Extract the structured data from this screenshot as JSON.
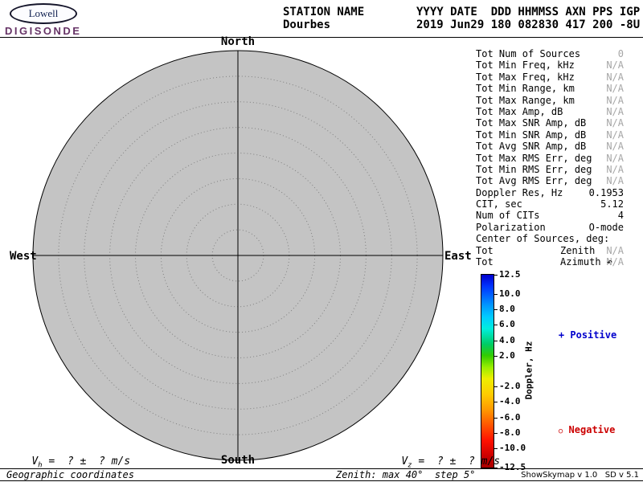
{
  "colors": {
    "brand_purple": "#663366",
    "positive_blue": "#0000cc",
    "negative_red": "#cc0000",
    "map_fill": "#c4c4c4"
  },
  "logo": {
    "name": "Lowell",
    "product": "DIGISONDE"
  },
  "header": {
    "station_label": "STATION NAME",
    "station_name": "Dourbes",
    "fields_header": "YYYY DATE  DDD HHMMSS AXN PPS IGP",
    "fields_values": "2019 Jun29 180 082830 417 200 -8U"
  },
  "skymap": {
    "north": "North",
    "south": "South",
    "west": "West",
    "east": "East"
  },
  "stats": [
    {
      "label": "Tot Num of Sources",
      "value": "0",
      "dim": true
    },
    {
      "label": "Tot Min Freq, kHz",
      "value": "N/A",
      "dim": true
    },
    {
      "label": "Tot Max Freq, kHz",
      "value": "N/A",
      "dim": true
    },
    {
      "label": "Tot Min Range, km",
      "value": "N/A",
      "dim": true
    },
    {
      "label": "Tot Max Range, km",
      "value": "N/A",
      "dim": true
    },
    {
      "label": "Tot Max Amp, dB",
      "value": "N/A",
      "dim": true
    },
    {
      "label": "Tot Max SNR Amp, dB",
      "value": "N/A",
      "dim": true
    },
    {
      "label": "Tot Min SNR Amp, dB",
      "value": "N/A",
      "dim": true
    },
    {
      "label": "Tot Avg SNR Amp, dB",
      "value": "N/A",
      "dim": true
    },
    {
      "label": "Tot Max RMS Err, deg",
      "value": "N/A",
      "dim": true
    },
    {
      "label": "Tot Min RMS Err, deg",
      "value": "N/A",
      "dim": true
    },
    {
      "label": "Tot Avg RMS Err, deg",
      "value": "N/A",
      "dim": true
    },
    {
      "label": "Doppler Res, Hz",
      "value": "0.1953",
      "dim": false
    },
    {
      "label": "CIT, sec",
      "value": "5.12",
      "dim": false
    },
    {
      "label": "Num of CITs",
      "value": "4",
      "dim": false
    },
    {
      "label": "Polarization",
      "value": "O-mode",
      "dim": false
    },
    {
      "label": "Center of Sources, deg:",
      "value": "",
      "dim": false
    },
    {
      "label": "Tot",
      "mid": "Zenith",
      "value": "N/A",
      "dim": true
    },
    {
      "label": "Tot",
      "mid": "Azimuth ↶",
      "value": "N/A",
      "dim": true
    }
  ],
  "colorbar": {
    "title": "Doppler, Hz",
    "range": [
      -12.5,
      12.5
    ],
    "tick_values": [
      12.5,
      10,
      8,
      6,
      4,
      2,
      -2,
      -4,
      -6,
      -8,
      -10,
      -12.5
    ],
    "tick_labels": [
      "12.5",
      "10.0",
      "8.0",
      "6.0",
      "4.0",
      "2.0",
      "-2.0",
      "-4.0",
      "-6.0",
      "-8.0",
      "-10.0",
      "-12.5"
    ]
  },
  "legend": {
    "positive_symbol": "+",
    "positive_text": " Positive",
    "negative_symbol": "○",
    "negative_text": " Negative"
  },
  "footer": {
    "vh_prefix": "V",
    "vh_sub": "h",
    "vh_rest": " =  ? ±  ? m/s",
    "vz_prefix": "V",
    "vz_sub": "z",
    "vz_rest": " =  ? ±  ? m/s",
    "coordinates_label": "Geographic coordinates",
    "zenith_label": "Zenith: max 40°  step 5°",
    "version": "ShowSkymap v 1.0   SD v 5.1"
  }
}
